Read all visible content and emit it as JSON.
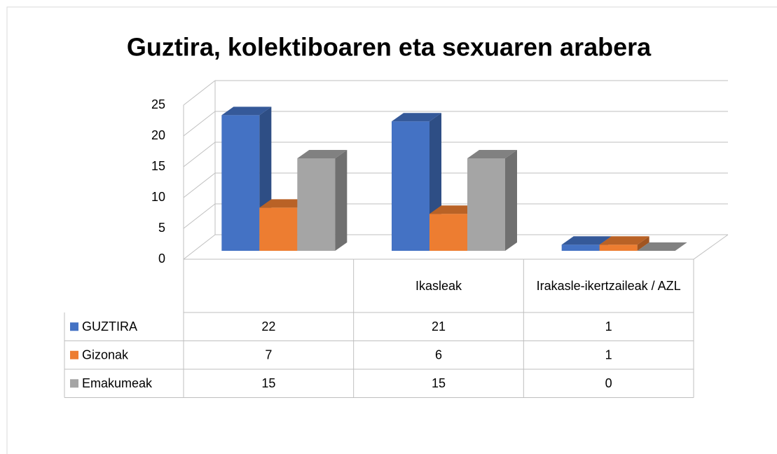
{
  "chart_data": {
    "type": "bar3d",
    "title": "Guztira, kolektiboaren eta sexuaren arabera",
    "categories": [
      null,
      "Ikasleak",
      "Irakasle-ikertzaileak / AZL"
    ],
    "series": [
      {
        "name": "GUZTIRA",
        "color": "#4472c4",
        "values": [
          22,
          21,
          1
        ]
      },
      {
        "name": "Gizonak",
        "color": "#ed7d31",
        "values": [
          7,
          6,
          1
        ]
      },
      {
        "name": "Emakumeak",
        "color": "#a5a5a5",
        "values": [
          15,
          15,
          0
        ]
      }
    ],
    "ylim": [
      0,
      25
    ],
    "yticks": [
      0,
      5,
      10,
      15,
      20,
      25
    ],
    "grid": true,
    "legend": "table"
  }
}
